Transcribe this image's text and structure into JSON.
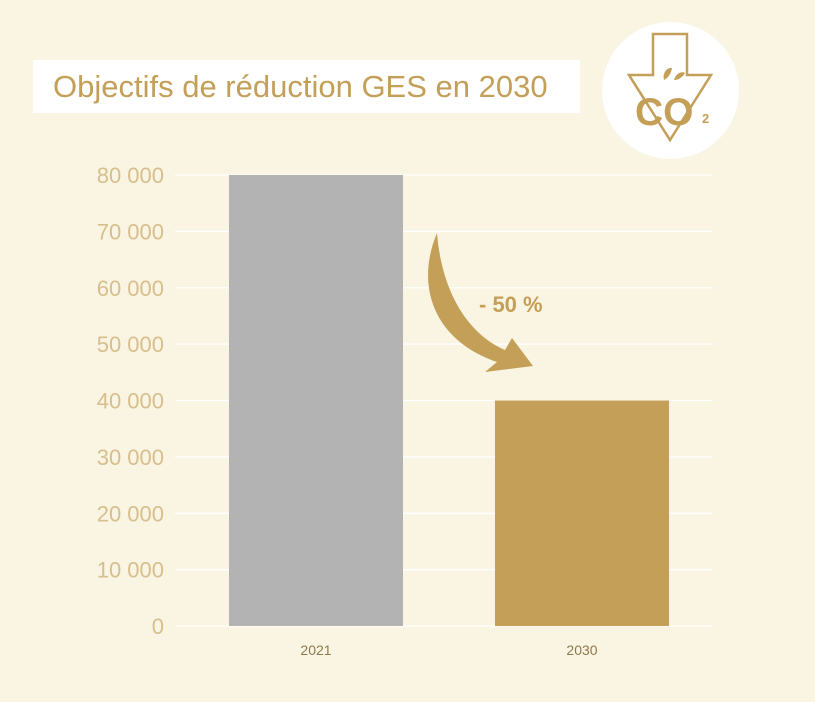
{
  "colors": {
    "background": "#faf4e3",
    "accent": "#c39f58",
    "bar_2021": "#b3b3b3",
    "bar_2030": "#c39f58",
    "tick_label": "#d6bf8c",
    "category_label": "#8f7a4e"
  },
  "logo": {
    "icon": "co2-reduction-icon",
    "label": "CO₂"
  },
  "chart_data": {
    "type": "bar",
    "title": "Objectifs de réduction GES en 2030",
    "categories": [
      "2021",
      "2030"
    ],
    "values": [
      80000,
      40000
    ],
    "ylim": [
      0,
      80000
    ],
    "yticks": [
      {
        "value": 0,
        "label": "0"
      },
      {
        "value": 10000,
        "label": "10 000"
      },
      {
        "value": 20000,
        "label": "20 000"
      },
      {
        "value": 30000,
        "label": "30 000"
      },
      {
        "value": 40000,
        "label": "40 000"
      },
      {
        "value": 50000,
        "label": "50 000"
      },
      {
        "value": 60000,
        "label": "60 000"
      },
      {
        "value": 70000,
        "label": "70 000"
      },
      {
        "value": 80000,
        "label": "80 000"
      }
    ],
    "grid": true,
    "legend": "none",
    "annotation": "- 50 %"
  }
}
